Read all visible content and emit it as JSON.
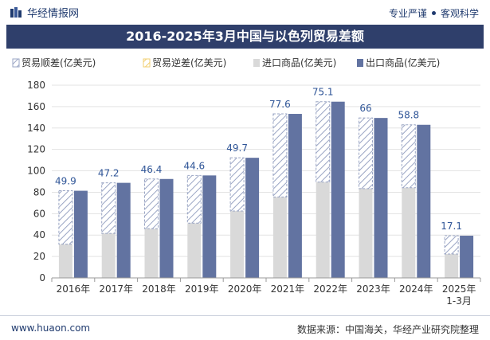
{
  "header": {
    "brand_name": "华经情报网",
    "slogan_left": "专业严谨",
    "slogan_right": "客观科学"
  },
  "footer": {
    "url": "www.huaon.com",
    "source": "数据来源：中国海关，华经产业研究院整理"
  },
  "colors": {
    "title_bg": "#2f3f6b",
    "export_bar": "#6273a1",
    "import_bar": "#d9d9d9",
    "surplus_hatch": "#9aa5c4",
    "deficit_hatch": "#f2cf72"
  },
  "chart_data": {
    "type": "bar",
    "title": "2016-2025年3月中国与以色列贸易差额",
    "categories": [
      "2016年",
      "2017年",
      "2018年",
      "2019年",
      "2020年",
      "2021年",
      "2022年",
      "2023年",
      "2024年",
      "2025年1-3月"
    ],
    "ylim": [
      0,
      180
    ],
    "yticks": [
      0,
      20,
      40,
      60,
      80,
      100,
      120,
      140,
      160,
      180
    ],
    "legend_position": "top",
    "series": [
      {
        "name": "贸易顺差(亿美元)",
        "values": [
          49.9,
          47.2,
          46.4,
          44.6,
          49.7,
          77.6,
          75.1,
          66,
          58.8,
          17.1
        ]
      },
      {
        "name": "贸易逆差(亿美元)",
        "values": [
          0,
          0,
          0,
          0,
          0,
          0,
          0,
          0,
          0,
          0
        ]
      },
      {
        "name": "进口商品(亿美元)",
        "values": [
          31.5,
          41.6,
          46.0,
          51.1,
          62.5,
          75.6,
          89.5,
          83.4,
          84.2,
          22.3
        ]
      },
      {
        "name": "出口商品(亿美元)",
        "values": [
          81.4,
          88.8,
          92.4,
          95.7,
          112.2,
          153.2,
          164.6,
          149.4,
          143.0,
          39.4
        ]
      }
    ],
    "data_labels": [
      "49.9",
      "47.2",
      "46.4",
      "44.6",
      "49.7",
      "77.6",
      "75.1",
      "66",
      "58.8",
      "17.1"
    ]
  }
}
